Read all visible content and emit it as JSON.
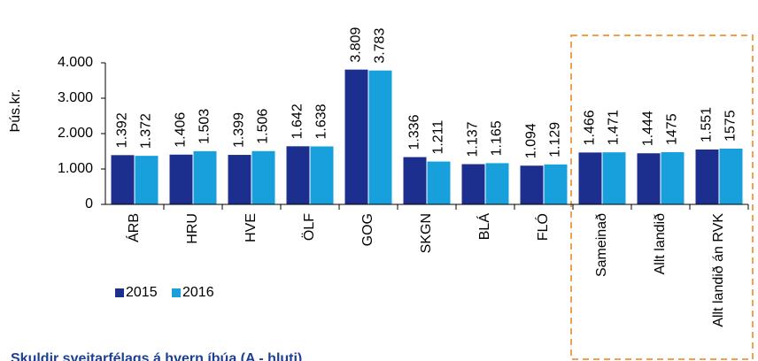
{
  "chart_data": {
    "type": "bar",
    "title": "Skuldir sveitarfélags á hvern íbúa (A - hluti)",
    "y_label": "Þús.kr.",
    "categories": [
      "ÁRB",
      "HRU",
      "HVE",
      "ÖLF",
      "GOG",
      "SKGN",
      "BLÁ",
      "FLÓ",
      "Sameinað",
      "Allt landið",
      "Allt landið án RVK"
    ],
    "series": [
      {
        "name": "2015",
        "color": "#1c2f8f",
        "values": [
          1392,
          1406,
          1399,
          1642,
          3809,
          1336,
          1137,
          1094,
          1466,
          1444,
          1551
        ],
        "value_labels": [
          "1.392",
          "1.406",
          "1.399",
          "1.642",
          "3.809",
          "1.336",
          "1.137",
          "1.094",
          "1.466",
          "1.444",
          "1.551"
        ]
      },
      {
        "name": "2016",
        "color": "#17a0dc",
        "values": [
          1372,
          1503,
          1506,
          1638,
          3783,
          1211,
          1165,
          1129,
          1471,
          1475,
          1575
        ],
        "value_labels": [
          "1.372",
          "1.503",
          "1.506",
          "1.638",
          "3.783",
          "1.211",
          "1.165",
          "1.129",
          "1.471",
          "1475",
          "1575"
        ]
      }
    ],
    "ylim": [
      0,
      4000
    ],
    "yticks": [
      0,
      {
        "value": 1000,
        "label": "1.000"
      },
      {
        "value": 2000,
        "label": "2.000"
      },
      {
        "value": 3000,
        "label": "3.000"
      },
      {
        "value": 4000,
        "label": "4.000"
      }
    ],
    "grid": false,
    "legend": "bottom-left"
  }
}
